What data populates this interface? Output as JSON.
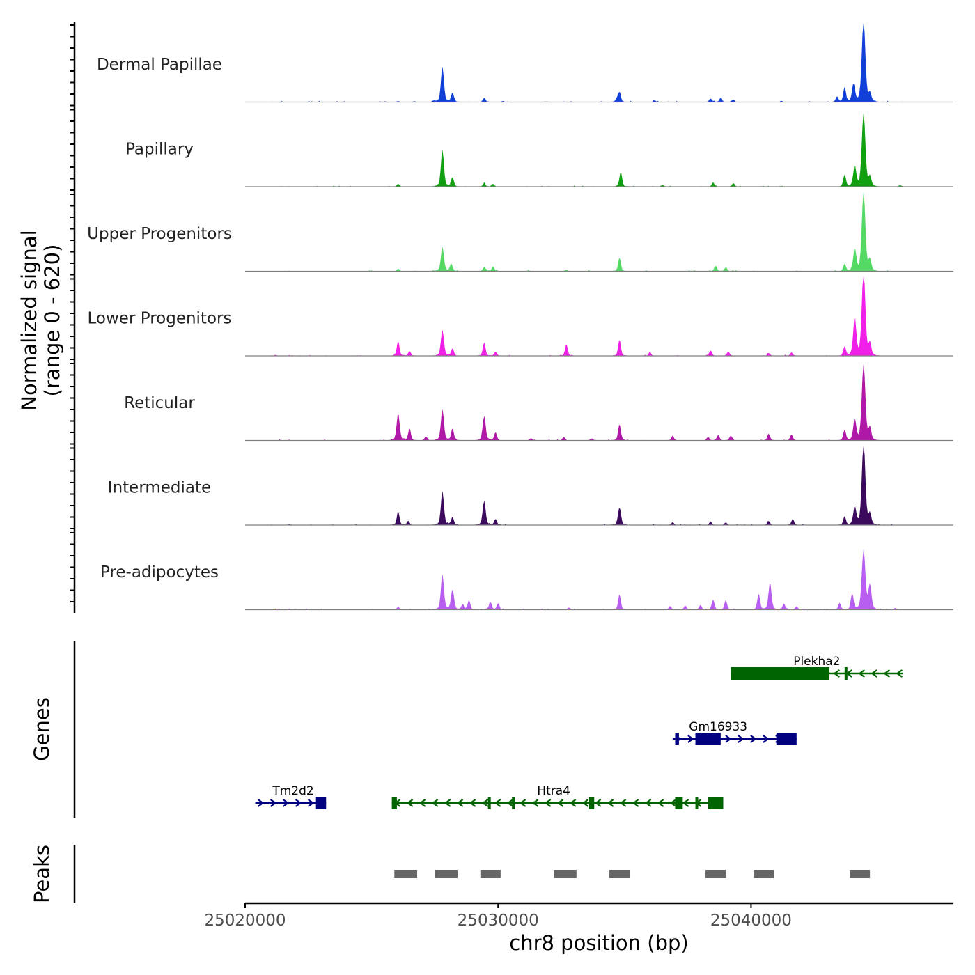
{
  "chart_data": {
    "type": "area",
    "title": "",
    "chromosome": "chr8",
    "xlabel": "chr8 position (bp)",
    "ylabel_line1": "Normalized signal",
    "ylabel_line2": "(range 0 - 620)",
    "xlim": [
      25020000,
      25048000
    ],
    "x_ticks": [
      25020000,
      25030000,
      25040000
    ],
    "x_tick_labels": [
      "25020000",
      "25030000",
      "25040000"
    ],
    "signal_range": [
      0,
      620
    ],
    "genes_label": "Genes",
    "peaks_label": "Peaks",
    "tracks": [
      {
        "name": "Dermal Papillae",
        "color": "#1040d8",
        "peaks": [
          [
            25026050,
            6
          ],
          [
            25026700,
            5
          ],
          [
            25027450,
            8
          ],
          [
            25027800,
            260
          ],
          [
            25028200,
            70
          ],
          [
            25029450,
            30
          ],
          [
            25030200,
            6
          ],
          [
            25034800,
            70
          ],
          [
            25034700,
            25
          ],
          [
            25036200,
            10
          ],
          [
            25038400,
            25
          ],
          [
            25038800,
            30
          ],
          [
            25039300,
            18
          ],
          [
            25041200,
            8
          ],
          [
            25043400,
            40
          ],
          [
            25043700,
            110
          ],
          [
            25044050,
            130
          ],
          [
            25044450,
            600
          ],
          [
            25044700,
            60
          ]
        ]
      },
      {
        "name": "Papillary",
        "color": "#10a010",
        "peaks": [
          [
            25026050,
            20
          ],
          [
            25027800,
            270
          ],
          [
            25028200,
            70
          ],
          [
            25029450,
            25
          ],
          [
            25029800,
            20
          ],
          [
            25034850,
            110
          ],
          [
            25036500,
            12
          ],
          [
            25038500,
            28
          ],
          [
            25039300,
            25
          ],
          [
            25043700,
            90
          ],
          [
            25044100,
            150
          ],
          [
            25044450,
            540
          ],
          [
            25044700,
            70
          ],
          [
            25045900,
            10
          ]
        ]
      },
      {
        "name": "Upper Progenitors",
        "color": "#55d965",
        "peaks": [
          [
            25026050,
            18
          ],
          [
            25027800,
            180
          ],
          [
            25028150,
            55
          ],
          [
            25029450,
            30
          ],
          [
            25029800,
            35
          ],
          [
            25032700,
            12
          ],
          [
            25034800,
            100
          ],
          [
            25038600,
            40
          ],
          [
            25039000,
            28
          ],
          [
            25043700,
            55
          ],
          [
            25044100,
            160
          ],
          [
            25044450,
            580
          ],
          [
            25044700,
            80
          ]
        ]
      },
      {
        "name": "Lower Progenitors",
        "color": "#f020e8",
        "peaks": [
          [
            25021200,
            6
          ],
          [
            25026050,
            110
          ],
          [
            25026500,
            35
          ],
          [
            25027800,
            190
          ],
          [
            25028200,
            55
          ],
          [
            25029450,
            100
          ],
          [
            25029900,
            30
          ],
          [
            25032700,
            85
          ],
          [
            25034800,
            120
          ],
          [
            25036000,
            22
          ],
          [
            25038400,
            40
          ],
          [
            25039100,
            32
          ],
          [
            25040700,
            20
          ],
          [
            25041600,
            25
          ],
          [
            25043700,
            70
          ],
          [
            25044100,
            280
          ],
          [
            25044450,
            620
          ],
          [
            25044700,
            90
          ]
        ]
      },
      {
        "name": "Reticular",
        "color": "#b018a8",
        "peaks": [
          [
            25026050,
            200
          ],
          [
            25026500,
            90
          ],
          [
            25027150,
            30
          ],
          [
            25027800,
            230
          ],
          [
            25028200,
            90
          ],
          [
            25029450,
            180
          ],
          [
            25029900,
            60
          ],
          [
            25031300,
            15
          ],
          [
            25032600,
            25
          ],
          [
            25033700,
            15
          ],
          [
            25034800,
            120
          ],
          [
            25036900,
            30
          ],
          [
            25038300,
            25
          ],
          [
            25038700,
            40
          ],
          [
            25039200,
            35
          ],
          [
            25040700,
            50
          ],
          [
            25041600,
            45
          ],
          [
            25043700,
            80
          ],
          [
            25044100,
            150
          ],
          [
            25044450,
            560
          ],
          [
            25044700,
            90
          ]
        ]
      },
      {
        "name": "Intermediate",
        "color": "#3c0a5c",
        "peaks": [
          [
            25026050,
            100
          ],
          [
            25026450,
            30
          ],
          [
            25027800,
            250
          ],
          [
            25028200,
            60
          ],
          [
            25029450,
            180
          ],
          [
            25029900,
            45
          ],
          [
            25034800,
            130
          ],
          [
            25036900,
            20
          ],
          [
            25038400,
            25
          ],
          [
            25039000,
            18
          ],
          [
            25040700,
            30
          ],
          [
            25041650,
            45
          ],
          [
            25043700,
            65
          ],
          [
            25044100,
            130
          ],
          [
            25044450,
            600
          ],
          [
            25044700,
            80
          ]
        ]
      },
      {
        "name": "Pre-adipocytes",
        "color": "#b85ef0",
        "peaks": [
          [
            25021300,
            6
          ],
          [
            25026050,
            20
          ],
          [
            25027800,
            260
          ],
          [
            25028200,
            150
          ],
          [
            25028600,
            40
          ],
          [
            25028850,
            70
          ],
          [
            25029700,
            55
          ],
          [
            25030000,
            45
          ],
          [
            25032800,
            15
          ],
          [
            25034800,
            110
          ],
          [
            25036800,
            25
          ],
          [
            25037400,
            30
          ],
          [
            25038000,
            35
          ],
          [
            25038500,
            75
          ],
          [
            25039000,
            70
          ],
          [
            25040300,
            120
          ],
          [
            25040750,
            200
          ],
          [
            25041300,
            45
          ],
          [
            25041800,
            25
          ],
          [
            25043500,
            50
          ],
          [
            25044000,
            120
          ],
          [
            25044450,
            440
          ],
          [
            25044700,
            180
          ],
          [
            25045700,
            12
          ]
        ]
      }
    ],
    "genes": [
      {
        "name": "Tm2d2",
        "strand": "+",
        "color": "#000080",
        "row": 3,
        "start": 25020400,
        "end": 25023200,
        "exons": [
          [
            25022800,
            25023200
          ]
        ],
        "label_pos": 25021900
      },
      {
        "name": "Htra4",
        "strand": "-",
        "color": "#006400",
        "row": 3,
        "start": 25025800,
        "end": 25038900,
        "exons": [
          [
            25025800,
            25026000
          ],
          [
            25029600,
            25029650
          ],
          [
            25030550,
            25030650
          ],
          [
            25033600,
            25033800
          ],
          [
            25037000,
            25037300
          ],
          [
            25037800,
            25037850
          ],
          [
            25038300,
            25038900
          ]
        ],
        "label_pos": 25032200
      },
      {
        "name": "Gm16933",
        "strand": "+",
        "color": "#000080",
        "row": 2,
        "start": 25036900,
        "end": 25041800,
        "exons": [
          [
            25037000,
            25037150
          ],
          [
            25037800,
            25038800
          ],
          [
            25041000,
            25041800
          ]
        ],
        "label_pos": 25038700
      },
      {
        "name": "Plekha2",
        "strand": "-",
        "color": "#006400",
        "row": 1,
        "start": 25039200,
        "end": 25046000,
        "exons": [
          [
            25039200,
            25043100
          ],
          [
            25043700,
            25043780
          ]
        ],
        "label_pos": 25042600
      }
    ],
    "peak_regions": [
      [
        25025900,
        25026800
      ],
      [
        25027500,
        25028400
      ],
      [
        25029300,
        25030100
      ],
      [
        25032200,
        25033100
      ],
      [
        25034400,
        25035200
      ],
      [
        25038200,
        25039000
      ],
      [
        25040100,
        25040900
      ],
      [
        25043900,
        25044700
      ]
    ],
    "peak_color": "#666666"
  }
}
